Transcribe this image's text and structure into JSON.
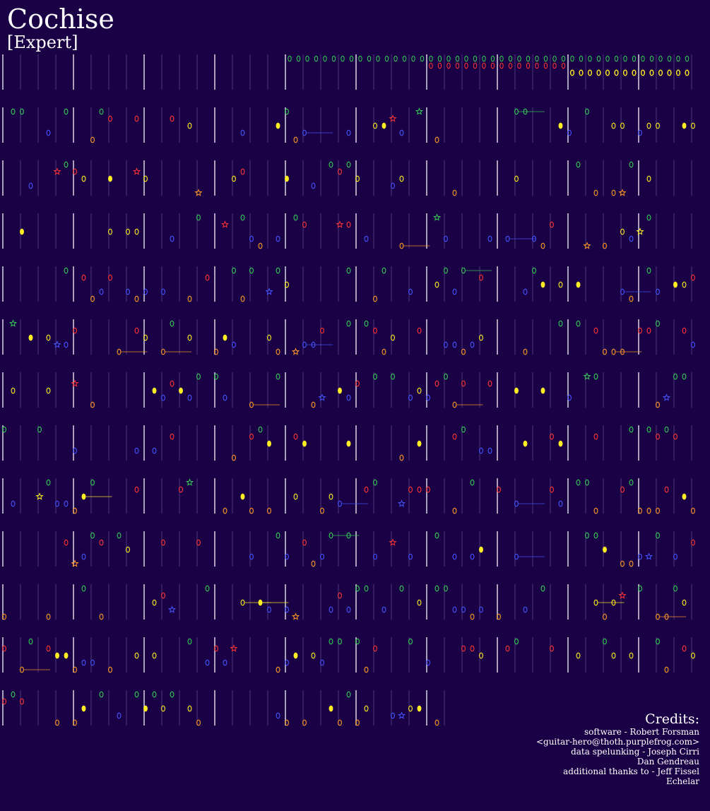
{
  "song": {
    "title": "Cochise",
    "difficulty": "[Expert]"
  },
  "colors": {
    "background": "#1a0045",
    "green": "#33cc55",
    "red": "#ff3333",
    "yellow": "#ffee22",
    "blue": "#4455ff",
    "orange": "#ff9922",
    "star_power": "#44ff66",
    "measure_line": "#ffffff",
    "beat_line": "#8877bb"
  },
  "icons": {
    "note": "oval-note-icon",
    "star_note": "star-note-icon",
    "sustain": "sustain-tail"
  },
  "credits": {
    "heading": "Credits:",
    "lines": [
      "software - Robert Forsman",
      "<guitar-hero@thoth.purplefrog.com>",
      "data spelunking - Joseph Cirri",
      "Dan Gendreau",
      "additional thanks to - Jeff Fissel",
      "Echelar"
    ]
  }
}
